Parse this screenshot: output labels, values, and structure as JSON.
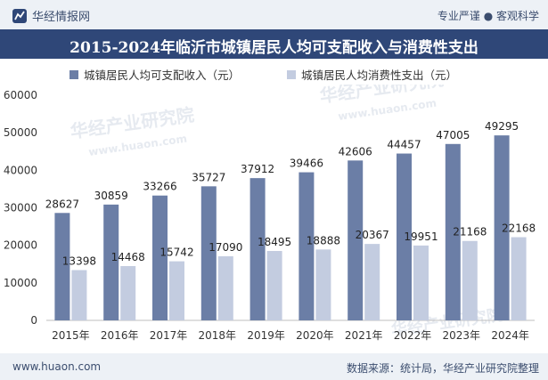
{
  "header": {
    "brand": "华经情报网",
    "slogan": "专业严谨 ● 客观科学"
  },
  "title": "2015-2024年临沂市城镇居民人均可支配收入与消费性支出",
  "footer": {
    "site": "www.huaon.com",
    "source": "数据来源：统计局，华经产业研究院整理"
  },
  "watermarks": [
    "华经产业研究院",
    "www.huaon.com"
  ],
  "colors": {
    "income": "#6b7ea6",
    "spending": "#c3cce0",
    "header_bg": "#2f4778",
    "band_bg": "#edf1f6"
  },
  "chart_data": {
    "type": "bar",
    "categories": [
      "2015年",
      "2016年",
      "2017年",
      "2018年",
      "2019年",
      "2020年",
      "2021年",
      "2022年",
      "2023年",
      "2024年"
    ],
    "series": [
      {
        "name": "城镇居民人均可支配收入（元）",
        "values": [
          28627,
          30859,
          33266,
          35727,
          37912,
          39466,
          42606,
          44457,
          47005,
          49295
        ]
      },
      {
        "name": "城镇居民人均消费性支出（元）",
        "values": [
          13398,
          14468,
          15742,
          17090,
          18495,
          18888,
          20367,
          19951,
          21168,
          22168
        ]
      }
    ],
    "ylim": [
      0,
      60000
    ],
    "yticks": [
      0,
      10000,
      20000,
      30000,
      40000,
      50000,
      60000
    ],
    "legend": "top-left",
    "grid": false
  }
}
